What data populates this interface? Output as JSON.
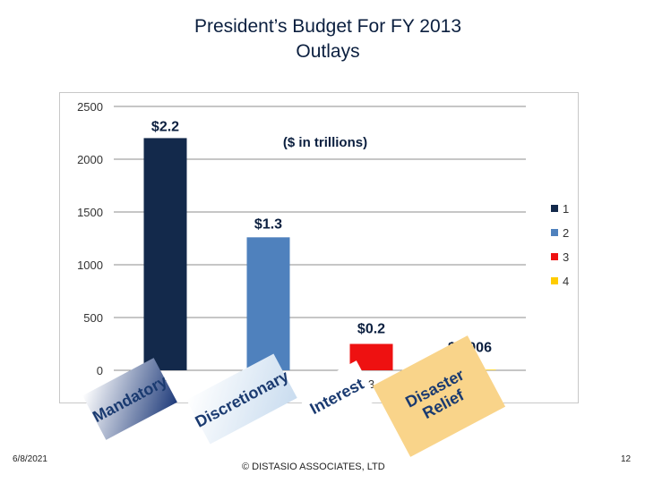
{
  "title": {
    "line1": "President’s Budget For FY 2013",
    "line2": "Outlays"
  },
  "chart_data": {
    "type": "bar",
    "title": "President’s Budget For FY 2013 Outlays",
    "subtitle": "($ in trillions)",
    "categories": [
      "1",
      "2",
      "3",
      "4"
    ],
    "values": [
      2200,
      1260,
      250,
      6
    ],
    "data_labels": [
      "$2.2",
      "$1.3",
      "$0.2",
      "$0.006"
    ],
    "category_names": [
      "Mandatory",
      "Discretionary",
      "Interest",
      "Disaster Relief"
    ],
    "series_colors": [
      "#13294b",
      "#4f81bd",
      "#ee1111",
      "#ffcc00"
    ],
    "yticks": [
      0,
      500,
      1000,
      1500,
      2000,
      2500
    ],
    "ylim": [
      0,
      2500
    ],
    "xlabel": "",
    "ylabel": "",
    "legend": {
      "position": "right",
      "entries": [
        "1",
        "2",
        "3",
        "4"
      ]
    }
  },
  "badges": {
    "colors": [
      "#1f3b7a",
      "#c9dcef",
      "#ffffff",
      "#f9d48a"
    ]
  },
  "footer": {
    "date": "6/8/2021",
    "copyright": "© DISTASIO ASSOCIATES, LTD",
    "page": "12"
  }
}
